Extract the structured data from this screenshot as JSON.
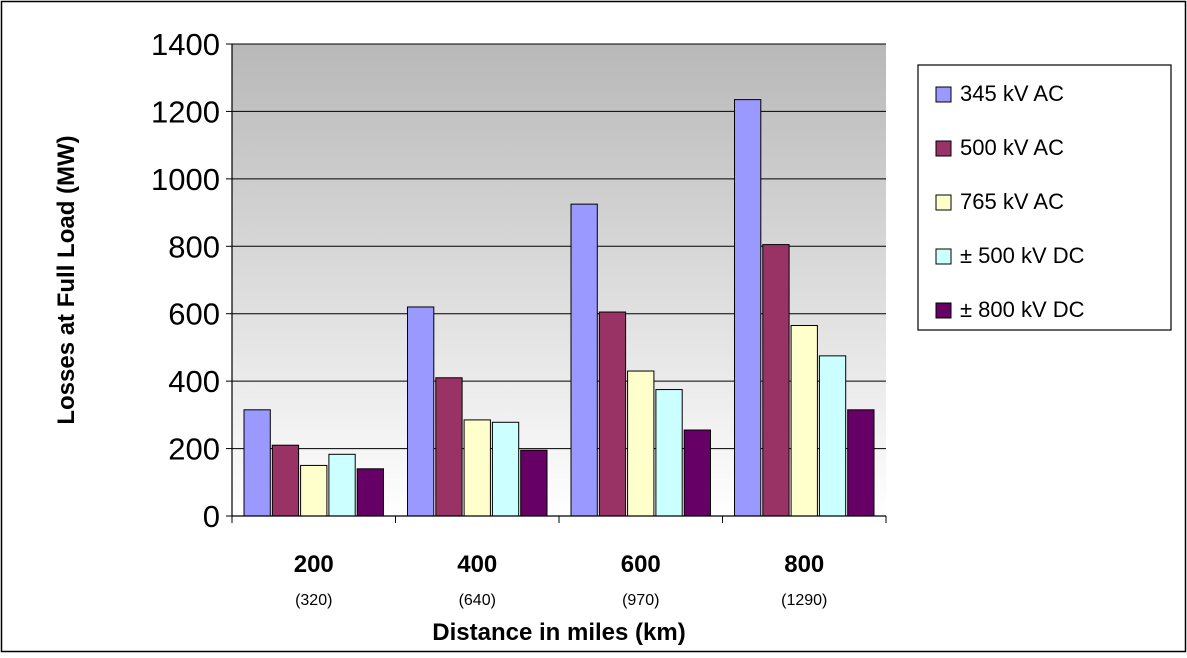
{
  "chart_data": {
    "type": "bar",
    "title": "",
    "xlabel": "Distance in miles (km)",
    "ylabel": "Losses at Full Load (MW)",
    "ylim": [
      0,
      1400
    ],
    "yticks": [
      0,
      200,
      400,
      600,
      800,
      1000,
      1200,
      1400
    ],
    "categories": [
      "200",
      "400",
      "600",
      "800"
    ],
    "category_sublabels": [
      "(320)",
      "(640)",
      "(970)",
      "(1290)"
    ],
    "legend_position": "right",
    "series": [
      {
        "name": "345 kV AC",
        "color": "#9999ff",
        "values": [
          315,
          620,
          925,
          1235
        ]
      },
      {
        "name": "500 kV AC",
        "color": "#993366",
        "values": [
          210,
          410,
          605,
          805
        ]
      },
      {
        "name": "765 kV AC",
        "color": "#ffffcc",
        "values": [
          150,
          285,
          430,
          565
        ]
      },
      {
        "name": "± 500 kV DC",
        "color": "#ccffff",
        "values": [
          183,
          278,
          375,
          475
        ]
      },
      {
        "name": "± 800 kV DC",
        "color": "#660066",
        "values": [
          140,
          195,
          255,
          315
        ]
      }
    ],
    "grid": true,
    "plot_background": "gradient gray to white"
  }
}
